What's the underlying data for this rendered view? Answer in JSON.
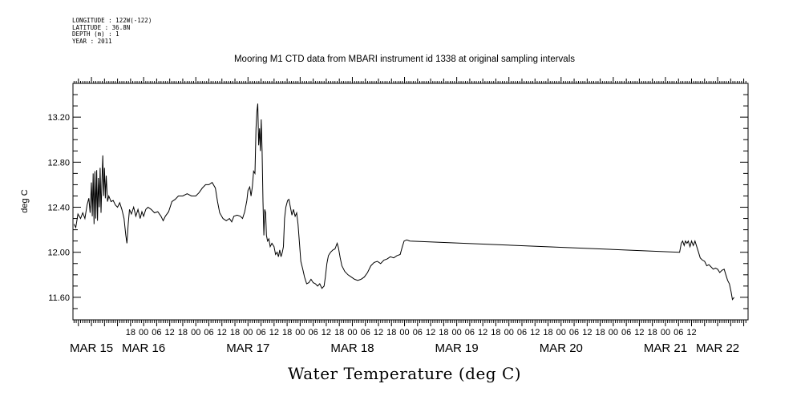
{
  "header": {
    "longitude": "LONGITUDE : 122W(-122)",
    "latitude": "LATITUDE : 36.8N",
    "depth": "DEPTH (m) : 1",
    "year": "YEAR : 2011"
  },
  "chart_data": {
    "type": "line",
    "title": "Mooring M1 CTD data from MBARI instrument id 1338 at original sampling intervals",
    "xlabel": "Water Temperature (deg C)",
    "ylabel": "deg C",
    "x_unit": "hours since MAR 15 00:00",
    "xlim": [
      -8.5,
      302
    ],
    "ylim": [
      11.4,
      13.5
    ],
    "yticks": [
      11.6,
      12.0,
      12.4,
      12.8,
      13.2
    ],
    "ytick_labels": [
      "11.60",
      "12.00",
      "12.40",
      "12.80",
      "13.20"
    ],
    "hour_ticks": [
      {
        "x": 18,
        "label": "18"
      },
      {
        "x": 24,
        "label": "00"
      },
      {
        "x": 30,
        "label": "06"
      },
      {
        "x": 36,
        "label": "12"
      },
      {
        "x": 42,
        "label": "18"
      },
      {
        "x": 48,
        "label": "00"
      },
      {
        "x": 54,
        "label": "06"
      },
      {
        "x": 60,
        "label": "12"
      },
      {
        "x": 66,
        "label": "18"
      },
      {
        "x": 72,
        "label": "00"
      },
      {
        "x": 78,
        "label": "06"
      },
      {
        "x": 84,
        "label": "12"
      },
      {
        "x": 90,
        "label": "18"
      },
      {
        "x": 96,
        "label": "00"
      },
      {
        "x": 102,
        "label": "06"
      },
      {
        "x": 108,
        "label": "12"
      },
      {
        "x": 114,
        "label": "18"
      },
      {
        "x": 120,
        "label": "00"
      },
      {
        "x": 126,
        "label": "06"
      },
      {
        "x": 132,
        "label": "12"
      },
      {
        "x": 138,
        "label": "18"
      },
      {
        "x": 144,
        "label": "00"
      },
      {
        "x": 150,
        "label": "06"
      },
      {
        "x": 156,
        "label": "12"
      },
      {
        "x": 162,
        "label": "18"
      },
      {
        "x": 168,
        "label": "00"
      },
      {
        "x": 174,
        "label": "06"
      },
      {
        "x": 180,
        "label": "12"
      },
      {
        "x": 186,
        "label": "18"
      },
      {
        "x": 192,
        "label": "00"
      },
      {
        "x": 198,
        "label": "06"
      },
      {
        "x": 204,
        "label": "12"
      },
      {
        "x": 210,
        "label": "18"
      },
      {
        "x": 216,
        "label": "00"
      },
      {
        "x": 222,
        "label": "06"
      },
      {
        "x": 228,
        "label": "12"
      },
      {
        "x": 234,
        "label": "18"
      },
      {
        "x": 240,
        "label": "00"
      },
      {
        "x": 246,
        "label": "06"
      },
      {
        "x": 252,
        "label": "12"
      },
      {
        "x": 258,
        "label": "18"
      },
      {
        "x": 264,
        "label": "00"
      },
      {
        "x": 270,
        "label": "06"
      },
      {
        "x": 276,
        "label": "12"
      }
    ],
    "day_labels": [
      {
        "x": 0,
        "label": "MAR 15"
      },
      {
        "x": 24,
        "label": "MAR 16"
      },
      {
        "x": 72,
        "label": "MAR 17"
      },
      {
        "x": 120,
        "label": "MAR 18"
      },
      {
        "x": 168,
        "label": "MAR 19"
      },
      {
        "x": 216,
        "label": "MAR 20"
      },
      {
        "x": 264,
        "label": "MAR 21"
      },
      {
        "x": 288,
        "label": "MAR 22"
      }
    ],
    "series": [
      {
        "color": "#000000",
        "points": [
          [
            -8,
            12.25
          ],
          [
            -7.2,
            12.22
          ],
          [
            -6.2,
            12.34
          ],
          [
            -5,
            12.3
          ],
          [
            -4,
            12.35
          ],
          [
            -3,
            12.3
          ],
          [
            -2,
            12.42
          ],
          [
            -1.2,
            12.48
          ],
          [
            -0.6,
            12.35
          ],
          [
            0,
            12.62
          ],
          [
            0.4,
            12.32
          ],
          [
            0.8,
            12.7
          ],
          [
            1.2,
            12.25
          ],
          [
            1.6,
            12.72
          ],
          [
            2,
            12.3
          ],
          [
            2.4,
            12.73
          ],
          [
            2.8,
            12.28
          ],
          [
            3.2,
            12.66
          ],
          [
            3.6,
            12.4
          ],
          [
            4,
            12.75
          ],
          [
            4.4,
            12.35
          ],
          [
            4.8,
            12.62
          ],
          [
            5.2,
            12.86
          ],
          [
            5.6,
            12.5
          ],
          [
            6,
            12.75
          ],
          [
            6.4,
            12.48
          ],
          [
            6.8,
            12.68
          ],
          [
            7.4,
            12.45
          ],
          [
            8,
            12.5
          ],
          [
            9,
            12.45
          ],
          [
            10,
            12.46
          ],
          [
            11,
            12.42
          ],
          [
            12,
            12.4
          ],
          [
            13,
            12.44
          ],
          [
            14,
            12.38
          ],
          [
            15,
            12.3
          ],
          [
            15.8,
            12.15
          ],
          [
            16.3,
            12.08
          ],
          [
            16.9,
            12.25
          ],
          [
            17.5,
            12.38
          ],
          [
            18.4,
            12.34
          ],
          [
            19.4,
            12.4
          ],
          [
            20.4,
            12.32
          ],
          [
            21.4,
            12.38
          ],
          [
            22.4,
            12.3
          ],
          [
            23.2,
            12.36
          ],
          [
            24,
            12.32
          ],
          [
            25,
            12.38
          ],
          [
            26,
            12.4
          ],
          [
            27.5,
            12.38
          ],
          [
            29,
            12.35
          ],
          [
            30.5,
            12.36
          ],
          [
            32,
            12.32
          ],
          [
            33,
            12.28
          ],
          [
            34,
            12.32
          ],
          [
            35.5,
            12.36
          ],
          [
            37,
            12.45
          ],
          [
            38.5,
            12.47
          ],
          [
            40,
            12.5
          ],
          [
            42,
            12.5
          ],
          [
            44,
            12.52
          ],
          [
            46,
            12.5
          ],
          [
            48,
            12.5
          ],
          [
            49.5,
            12.53
          ],
          [
            51,
            12.57
          ],
          [
            52.5,
            12.6
          ],
          [
            54,
            12.6
          ],
          [
            55.5,
            12.62
          ],
          [
            57,
            12.57
          ],
          [
            58,
            12.45
          ],
          [
            59,
            12.35
          ],
          [
            60.5,
            12.3
          ],
          [
            62,
            12.28
          ],
          [
            63.5,
            12.3
          ],
          [
            64.5,
            12.27
          ],
          [
            65.5,
            12.32
          ],
          [
            67,
            12.33
          ],
          [
            68.5,
            12.32
          ],
          [
            69.5,
            12.3
          ],
          [
            70.5,
            12.36
          ],
          [
            71.5,
            12.46
          ],
          [
            72,
            12.55
          ],
          [
            72.8,
            12.58
          ],
          [
            73.4,
            12.5
          ],
          [
            74,
            12.58
          ],
          [
            74.6,
            12.72
          ],
          [
            75.2,
            12.7
          ],
          [
            75.7,
            13.1
          ],
          [
            76.1,
            13.25
          ],
          [
            76.5,
            13.32
          ],
          [
            76.9,
            12.95
          ],
          [
            77.3,
            13.1
          ],
          [
            77.7,
            12.9
          ],
          [
            78.1,
            13.18
          ],
          [
            78.5,
            12.9
          ],
          [
            78.9,
            12.45
          ],
          [
            79.3,
            12.15
          ],
          [
            79.7,
            12.38
          ],
          [
            80.1,
            12.35
          ],
          [
            80.5,
            12.15
          ],
          [
            81,
            12.1
          ],
          [
            81.6,
            12.12
          ],
          [
            82.2,
            12.05
          ],
          [
            83,
            12.08
          ],
          [
            84,
            12.05
          ],
          [
            84.7,
            11.98
          ],
          [
            85.4,
            12.0
          ],
          [
            86,
            11.96
          ],
          [
            86.6,
            12.02
          ],
          [
            87.2,
            11.96
          ],
          [
            87.8,
            12.0
          ],
          [
            88.3,
            12.05
          ],
          [
            88.8,
            12.3
          ],
          [
            89.4,
            12.4
          ],
          [
            90.2,
            12.46
          ],
          [
            90.8,
            12.47
          ],
          [
            91.5,
            12.4
          ],
          [
            92.2,
            12.33
          ],
          [
            92.9,
            12.38
          ],
          [
            93.7,
            12.32
          ],
          [
            94.4,
            12.35
          ],
          [
            95,
            12.25
          ],
          [
            95.6,
            12.1
          ],
          [
            96.3,
            11.92
          ],
          [
            97.2,
            11.85
          ],
          [
            98,
            11.78
          ],
          [
            99,
            11.72
          ],
          [
            100,
            11.73
          ],
          [
            101,
            11.76
          ],
          [
            102,
            11.73
          ],
          [
            103,
            11.72
          ],
          [
            104,
            11.7
          ],
          [
            105,
            11.72
          ],
          [
            106,
            11.68
          ],
          [
            107,
            11.7
          ],
          [
            107.6,
            11.78
          ],
          [
            108.3,
            11.9
          ],
          [
            109,
            11.97
          ],
          [
            110,
            12.0
          ],
          [
            111,
            12.02
          ],
          [
            112,
            12.03
          ],
          [
            113,
            12.08
          ],
          [
            113.6,
            12.04
          ],
          [
            114.4,
            11.95
          ],
          [
            115.2,
            11.88
          ],
          [
            116.5,
            11.83
          ],
          [
            118,
            11.8
          ],
          [
            119.5,
            11.78
          ],
          [
            121,
            11.76
          ],
          [
            122.5,
            11.75
          ],
          [
            124,
            11.76
          ],
          [
            125.5,
            11.78
          ],
          [
            127,
            11.82
          ],
          [
            128.5,
            11.88
          ],
          [
            130,
            11.91
          ],
          [
            131.5,
            11.92
          ],
          [
            133,
            11.9
          ],
          [
            134.5,
            11.93
          ],
          [
            136,
            11.94
          ],
          [
            137.5,
            11.96
          ],
          [
            139,
            11.95
          ],
          [
            140.5,
            11.97
          ],
          [
            142,
            11.98
          ],
          [
            143,
            12.05
          ],
          [
            143.8,
            12.1
          ],
          [
            145,
            12.11
          ],
          [
            146.5,
            12.1
          ],
          [
            270.5,
            12.0
          ],
          [
            271.3,
            12.08
          ],
          [
            271.9,
            12.1
          ],
          [
            272.6,
            12.06
          ],
          [
            273.2,
            12.1
          ],
          [
            273.9,
            12.08
          ],
          [
            274.5,
            12.1
          ],
          [
            275.3,
            12.05
          ],
          [
            276,
            12.1
          ],
          [
            276.8,
            12.06
          ],
          [
            277.6,
            12.1
          ],
          [
            278.4,
            12.05
          ],
          [
            279.2,
            12.0
          ],
          [
            280,
            11.95
          ],
          [
            281,
            11.93
          ],
          [
            282,
            11.92
          ],
          [
            283,
            11.88
          ],
          [
            284,
            11.89
          ],
          [
            285,
            11.87
          ],
          [
            286,
            11.85
          ],
          [
            287,
            11.86
          ],
          [
            288,
            11.85
          ],
          [
            289,
            11.82
          ],
          [
            290,
            11.84
          ],
          [
            291,
            11.85
          ],
          [
            291.8,
            11.8
          ],
          [
            292.6,
            11.75
          ],
          [
            293.4,
            11.72
          ],
          [
            294.2,
            11.65
          ],
          [
            294.8,
            11.58
          ],
          [
            295.6,
            11.6
          ]
        ]
      }
    ]
  }
}
